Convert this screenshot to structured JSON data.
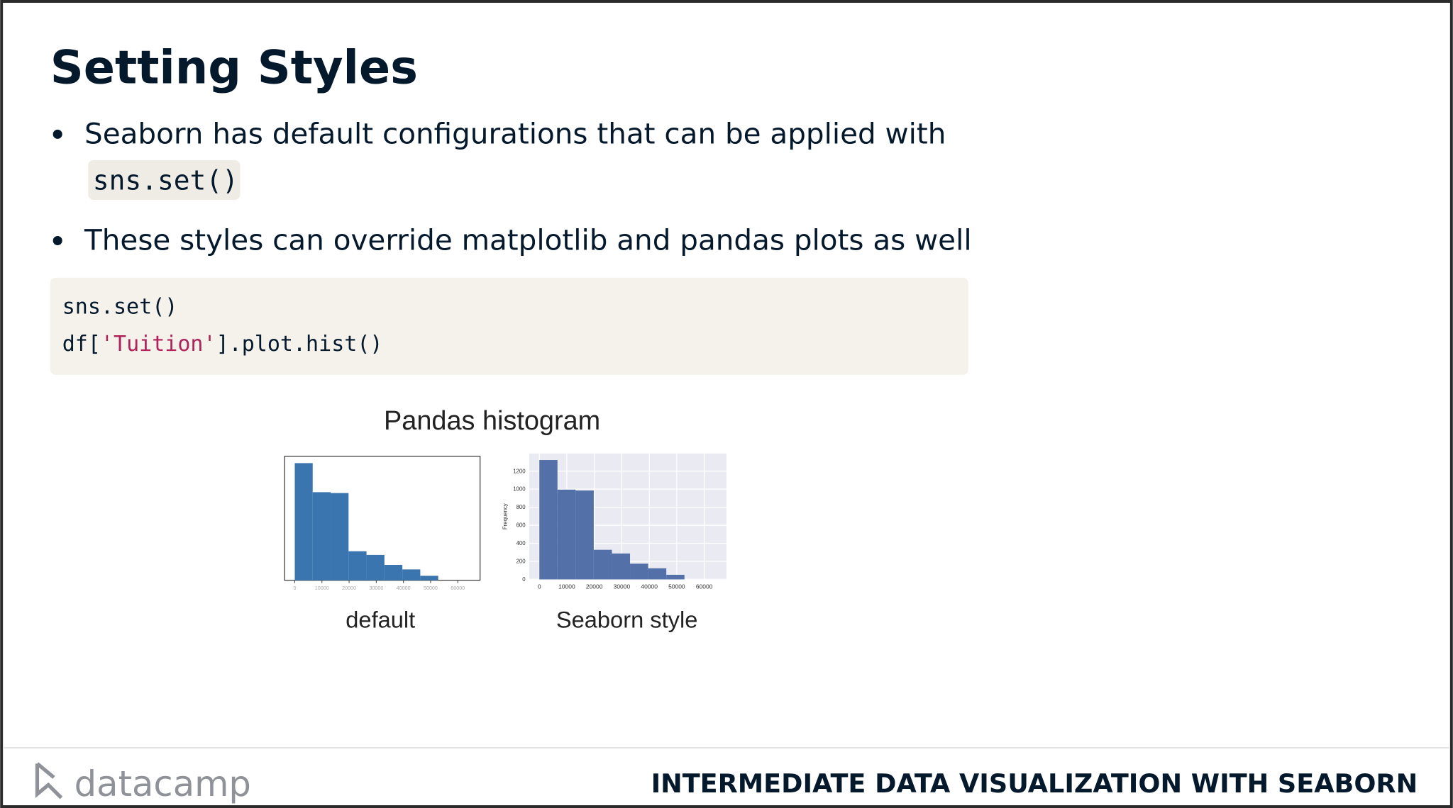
{
  "slide": {
    "title": "Setting Styles",
    "bullets": [
      {
        "text": "Seaborn has default configurations that can be applied with",
        "code": "sns.set()"
      },
      {
        "text": "These styles can override matplotlib and pandas plots as well"
      }
    ],
    "code": {
      "line1": "sns.set()",
      "line2": [
        "df[",
        "'Tuition'",
        "].plot.hist()"
      ]
    },
    "figure_title": "Pandas histogram",
    "footer": {
      "logo": "datacamp",
      "course": "INTERMEDIATE DATA VISUALIZATION WITH SEABORN"
    }
  },
  "chart_data": [
    {
      "type": "histogram",
      "caption": "default",
      "color": "#3b75af",
      "style": "default",
      "bins": [
        0,
        6600,
        13200,
        19800,
        26400,
        33000,
        39600,
        46200,
        52800
      ],
      "values": [
        1323,
        995,
        985,
        328,
        287,
        174,
        123,
        51
      ],
      "xlim": [
        -3750,
        68200
      ],
      "ylim": [
        0,
        1400
      ],
      "xticks": [
        0,
        10000,
        20000,
        30000,
        40000,
        50000,
        60000
      ],
      "grid": false
    },
    {
      "type": "histogram",
      "caption": "Seaborn style",
      "color": "#5470a8",
      "style": "seaborn",
      "ylabel": "Frequency",
      "bins": [
        0,
        6600,
        13200,
        19800,
        26400,
        33000,
        39600,
        46200,
        52800
      ],
      "values": [
        1323,
        995,
        985,
        328,
        287,
        174,
        123,
        51
      ],
      "xlim": [
        -3700,
        68100
      ],
      "ylim": [
        0,
        1395
      ],
      "xticks": [
        0,
        10000,
        20000,
        30000,
        40000,
        50000,
        60000
      ],
      "yticks": [
        0,
        200,
        400,
        600,
        800,
        1000,
        1200
      ],
      "grid": true
    }
  ]
}
